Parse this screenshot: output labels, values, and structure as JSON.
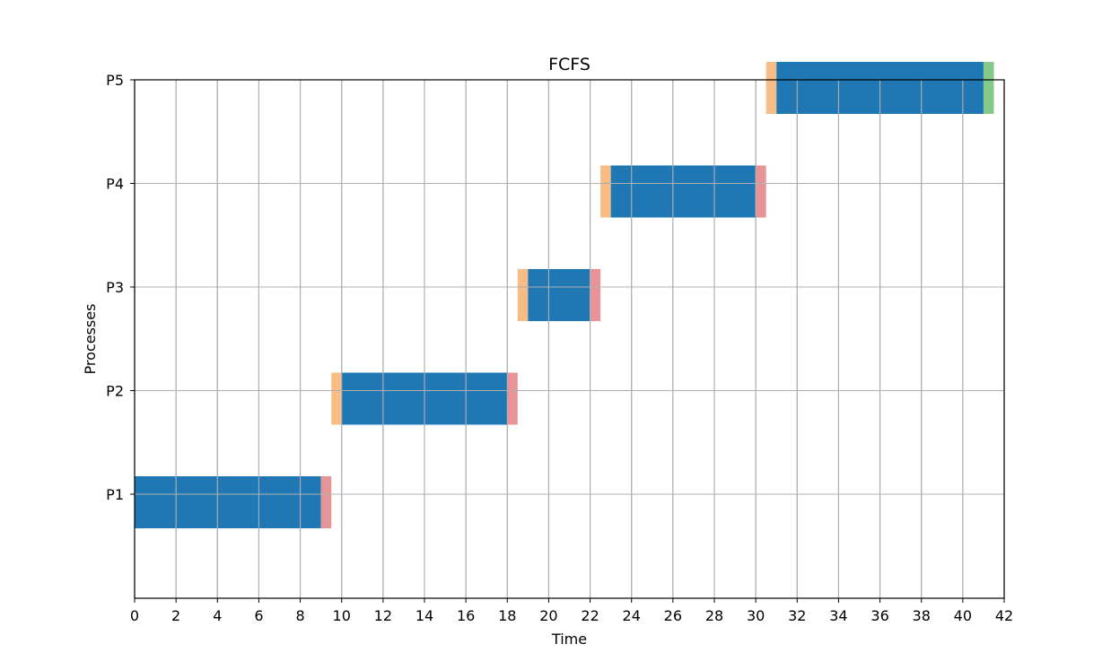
{
  "chart_data": {
    "type": "gantt",
    "title": "FCFS",
    "xlabel": "Time",
    "ylabel": "Processes",
    "xlim": [
      0,
      42
    ],
    "xticks": [
      0,
      2,
      4,
      6,
      8,
      10,
      12,
      14,
      16,
      18,
      20,
      22,
      24,
      26,
      28,
      30,
      32,
      34,
      36,
      38,
      40,
      42
    ],
    "yticks": [
      "P1",
      "P2",
      "P3",
      "P4",
      "P5"
    ],
    "grid": true,
    "colors": {
      "cpu": "#1f77b4",
      "arrival_wait": "#f8bc86",
      "switch": "#e89496",
      "end": "#83c98a"
    },
    "segments": [
      {
        "process": "P1",
        "kind": "cpu",
        "start": 0,
        "end": 9
      },
      {
        "process": "P1",
        "kind": "switch",
        "start": 9,
        "end": 9.5
      },
      {
        "process": "P2",
        "kind": "arrival_wait",
        "start": 9.5,
        "end": 10
      },
      {
        "process": "P2",
        "kind": "cpu",
        "start": 10,
        "end": 18
      },
      {
        "process": "P2",
        "kind": "switch",
        "start": 18,
        "end": 18.5
      },
      {
        "process": "P3",
        "kind": "arrival_wait",
        "start": 18.5,
        "end": 19
      },
      {
        "process": "P3",
        "kind": "cpu",
        "start": 19,
        "end": 22
      },
      {
        "process": "P3",
        "kind": "switch",
        "start": 22,
        "end": 22.5
      },
      {
        "process": "P4",
        "kind": "arrival_wait",
        "start": 22.5,
        "end": 23
      },
      {
        "process": "P4",
        "kind": "cpu",
        "start": 23,
        "end": 30
      },
      {
        "process": "P4",
        "kind": "switch",
        "start": 30,
        "end": 30.5
      },
      {
        "process": "P5",
        "kind": "arrival_wait",
        "start": 30.5,
        "end": 31
      },
      {
        "process": "P5",
        "kind": "cpu",
        "start": 31,
        "end": 41
      },
      {
        "process": "P5",
        "kind": "end",
        "start": 41,
        "end": 41.5
      }
    ]
  }
}
